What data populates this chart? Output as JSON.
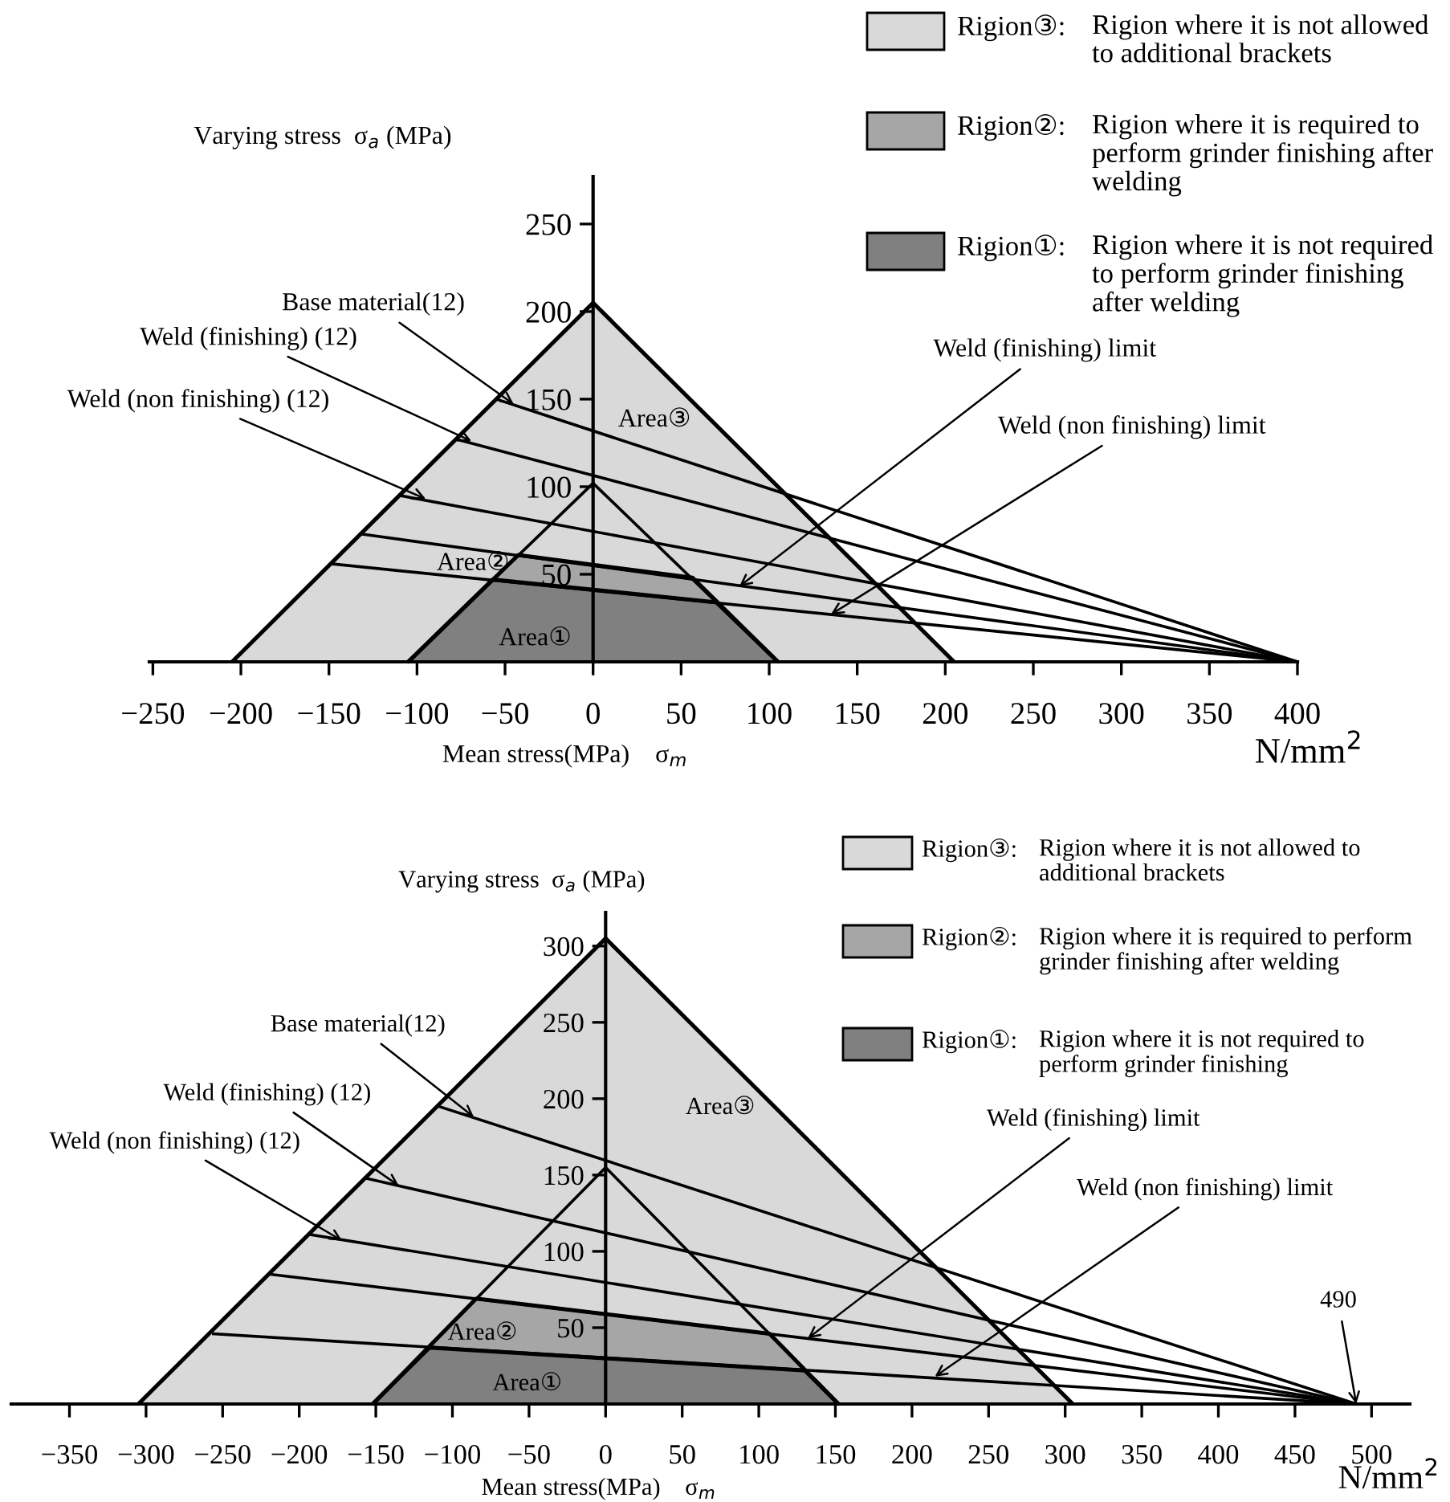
{
  "chart_data": [
    {
      "type": "line",
      "xlabel": "Mean stress(MPa)    σ$_{m}$",
      "ylabel": "Varying stress  σ$_{a}$ (MPa)",
      "xlim": [
        -252,
        400
      ],
      "ylim": [
        0,
        277
      ],
      "xticks": [
        {
          "value": -250,
          "label": "−250"
        },
        {
          "value": -200,
          "label": "−200"
        },
        {
          "value": -150,
          "label": "−150"
        },
        {
          "value": -100,
          "label": "−100"
        },
        {
          "value": -50,
          "label": "−50"
        },
        0,
        50,
        100,
        150,
        200,
        250,
        300,
        350,
        400
      ],
      "yticks": [
        50,
        100,
        150,
        200,
        250
      ],
      "legend": "top right",
      "series": [
        {
          "type": "area",
          "name": "Rigion③: Rigion where it is not allowed to additional brackets",
          "color": "#d9d9d9",
          "x": [
            -205,
            0,
            205
          ],
          "values": [
            0,
            205,
            0
          ]
        },
        {
          "type": "area",
          "name": "Rigion②: Rigion where it is required to perform grinder finishing after welding",
          "color": "#a6a6a6",
          "x": [
            -105,
            -42.5,
            56.5,
            105
          ],
          "values": [
            0,
            61,
            48,
            0
          ]
        },
        {
          "type": "area",
          "name": "Rigion①: Rigion where it is not required to perform grinder finishing after welding",
          "color": "#808080",
          "x": [
            -105,
            -57,
            70,
            105
          ],
          "values": [
            0,
            47,
            34,
            0
          ]
        },
        {
          "color": "#000000",
          "x": [
            -105,
            0,
            105
          ],
          "values": [
            0,
            102,
            0
          ]
        },
        {
          "color": "#000000",
          "x": [
            -55,
            400
          ],
          "values": [
            150,
            0
          ]
        },
        {
          "color": "#000000",
          "x": [
            -77.5,
            400
          ],
          "values": [
            127,
            0
          ]
        },
        {
          "color": "#000000",
          "x": [
            -110,
            400
          ],
          "values": [
            95,
            0
          ]
        },
        {
          "color": "#000000",
          "x": [
            -132,
            400
          ],
          "values": [
            73,
            0
          ]
        },
        {
          "color": "#000000",
          "x": [
            -149,
            400
          ],
          "values": [
            56,
            0
          ]
        }
      ],
      "annotations": [
        {
          "text": "Base material(12)",
          "x": -45,
          "y": 147
        },
        {
          "text": "Weld (finishing) (12)",
          "x": -69,
          "y": 126
        },
        {
          "text": "Weld (non finishing) (12)",
          "x": -95,
          "y": 93
        },
        "Area③",
        "Area②",
        "Area①",
        {
          "text": "Weld (finishing) limit",
          "x": 83,
          "y": 43
        },
        {
          "text": "Weld (non finishing) limit",
          "x": 135,
          "y": 27
        },
        "N/mm$^{2}$"
      ]
    },
    {
      "type": "line",
      "xlabel": "Mean stress(MPa)    σ$_{m}$",
      "ylabel": "Varying stress  σ$_{a}$ (MPa)",
      "xlim": [
        -388,
        525
      ],
      "ylim": [
        0,
        322
      ],
      "xticks": [
        {
          "value": -350,
          "label": "−350"
        },
        {
          "value": -300,
          "label": "−300"
        },
        {
          "value": -250,
          "label": "−250"
        },
        {
          "value": -200,
          "label": "−200"
        },
        {
          "value": -150,
          "label": "−150"
        },
        {
          "value": -100,
          "label": "−100"
        },
        {
          "value": -50,
          "label": "−50"
        },
        0,
        50,
        100,
        150,
        200,
        250,
        300,
        350,
        400,
        450,
        500
      ],
      "yticks": [
        50,
        100,
        150,
        200,
        250,
        300
      ],
      "legend": "top right",
      "series": [
        {
          "type": "area",
          "name": "Rigion③: Rigion where it is not allowed to additional brackets",
          "color": "#d9d9d9",
          "x": [
            -305,
            0,
            305
          ],
          "values": [
            0,
            305,
            0
          ]
        },
        {
          "type": "area",
          "name": "Rigion②: Rigion where it is required to perform grinder finishing after welding",
          "color": "#a6a6a6",
          "x": [
            -152,
            -84.5,
            107,
            152
          ],
          "values": [
            0,
            69,
            46,
            0
          ]
        },
        {
          "type": "area",
          "name": "Rigion①: Rigion where it is not required to perform grinder finishing",
          "color": "#808080",
          "x": [
            -152,
            -115,
            130,
            152
          ],
          "values": [
            0,
            37,
            22,
            0
          ]
        },
        {
          "color": "#000000",
          "x": [
            -152,
            0,
            152
          ],
          "values": [
            0,
            155,
            0
          ]
        },
        {
          "color": "#000000",
          "x": [
            -109,
            490
          ],
          "values": [
            195,
            0
          ]
        },
        {
          "color": "#000000",
          "x": [
            -157,
            490
          ],
          "values": [
            148,
            0
          ]
        },
        {
          "color": "#000000",
          "x": [
            -193,
            490
          ],
          "values": [
            111,
            0
          ]
        },
        {
          "color": "#000000",
          "x": [
            -219,
            490
          ],
          "values": [
            85,
            0
          ]
        },
        {
          "color": "#000000",
          "x": [
            -256,
            490
          ],
          "values": [
            46,
            0
          ]
        }
      ],
      "annotations": [
        {
          "text": "Base material(12)",
          "x": -86,
          "y": 188
        },
        {
          "text": "Weld (finishing) (12)",
          "x": -135,
          "y": 143
        },
        {
          "text": "Weld (non finishing) (12)",
          "x": -172,
          "y": 107
        },
        "Area③",
        "Area②",
        "Area①",
        {
          "text": "Weld (finishing) limit",
          "x": 132,
          "y": 43
        },
        {
          "text": "Weld (non finishing) limit",
          "x": 215,
          "y": 18
        },
        {
          "text": "490",
          "x": 490,
          "y": 0
        },
        "N/mm$^{2}$"
      ]
    }
  ]
}
